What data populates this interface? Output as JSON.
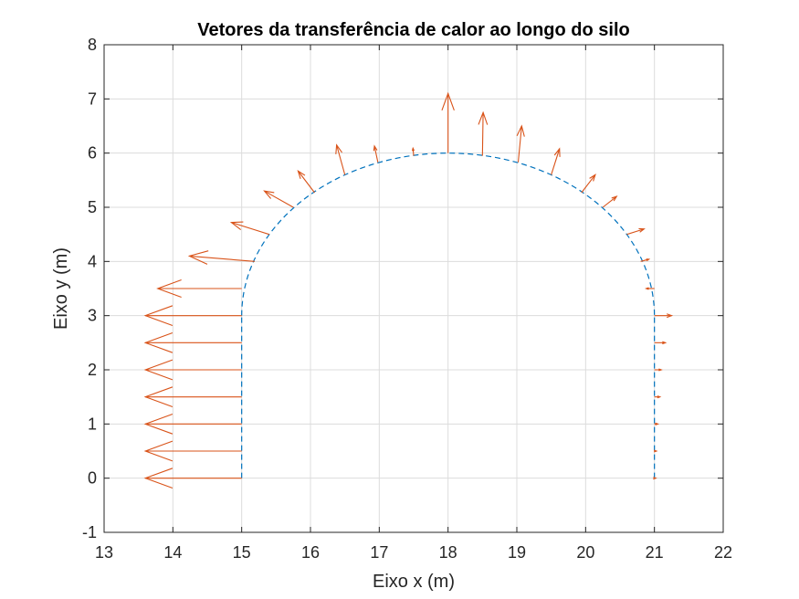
{
  "chart_data": {
    "type": "quiver",
    "title": "Vetores da transferência de calor ao longo do silo",
    "xlabel": "Eixo x (m)",
    "ylabel": "Eixo y (m)",
    "xlim": [
      13,
      22
    ],
    "ylim": [
      -1,
      8
    ],
    "xticks": [
      "13",
      "14",
      "15",
      "16",
      "17",
      "18",
      "19",
      "20",
      "21",
      "22"
    ],
    "yticks": [
      "-1",
      "0",
      "1",
      "2",
      "3",
      "4",
      "5",
      "6",
      "7",
      "8"
    ],
    "grid": true,
    "colors": {
      "silo_outline": "#0072BD",
      "vectors": "#D95319",
      "grid": "#dcdcdc",
      "axes": "#262626"
    },
    "silo_outline": {
      "style": "dashed",
      "left_wall": {
        "x": 15,
        "y_from": 0,
        "y_to": 3
      },
      "right_wall": {
        "x": 21,
        "y_from": 0,
        "y_to": 3
      },
      "dome": {
        "center": [
          18,
          3
        ],
        "radius": 3
      }
    },
    "vectors": [
      {
        "x": 15,
        "y": 0,
        "u": -1.4,
        "v": 0
      },
      {
        "x": 15,
        "y": 0.5,
        "u": -1.4,
        "v": 0
      },
      {
        "x": 15,
        "y": 1,
        "u": -1.4,
        "v": 0
      },
      {
        "x": 15,
        "y": 1.5,
        "u": -1.4,
        "v": 0
      },
      {
        "x": 15,
        "y": 2,
        "u": -1.4,
        "v": 0
      },
      {
        "x": 15,
        "y": 2.5,
        "u": -1.4,
        "v": 0
      },
      {
        "x": 15,
        "y": 3,
        "u": -1.4,
        "v": 0
      },
      {
        "x": 15,
        "y": 3.5,
        "u": -1.22,
        "v": 0
      },
      {
        "x": 15.19,
        "y": 4.0,
        "u": -0.95,
        "v": 0.1
      },
      {
        "x": 15.4,
        "y": 4.5,
        "u": -0.55,
        "v": 0.22
      },
      {
        "x": 15.75,
        "y": 5.0,
        "u": -0.42,
        "v": 0.3
      },
      {
        "x": 16.06,
        "y": 5.27,
        "u": -0.24,
        "v": 0.4
      },
      {
        "x": 16.5,
        "y": 5.6,
        "u": -0.12,
        "v": 0.55
      },
      {
        "x": 16.98,
        "y": 5.83,
        "u": -0.05,
        "v": 0.3
      },
      {
        "x": 17.5,
        "y": 5.95,
        "u": -0.01,
        "v": 0.14
      },
      {
        "x": 18.0,
        "y": 6.0,
        "u": 0,
        "v": 1.1
      },
      {
        "x": 18.5,
        "y": 5.95,
        "u": 0.01,
        "v": 0.8
      },
      {
        "x": 19.02,
        "y": 5.83,
        "u": 0.05,
        "v": 0.67
      },
      {
        "x": 19.5,
        "y": 5.6,
        "u": 0.12,
        "v": 0.48
      },
      {
        "x": 19.94,
        "y": 5.27,
        "u": 0.2,
        "v": 0.33
      },
      {
        "x": 20.25,
        "y": 5.0,
        "u": 0.2,
        "v": 0.2
      },
      {
        "x": 20.6,
        "y": 4.5,
        "u": 0.25,
        "v": 0.1
      },
      {
        "x": 20.8,
        "y": 4.0,
        "u": 0.12,
        "v": 0.04
      },
      {
        "x": 21,
        "y": 3.5,
        "u": -0.12,
        "v": 0
      },
      {
        "x": 21,
        "y": 3,
        "u": 0.25,
        "v": 0
      },
      {
        "x": 21,
        "y": 2.5,
        "u": 0.16,
        "v": 0
      },
      {
        "x": 21,
        "y": 2,
        "u": 0.1,
        "v": 0
      },
      {
        "x": 21,
        "y": 1.5,
        "u": 0.08,
        "v": 0
      },
      {
        "x": 21,
        "y": 1,
        "u": 0.05,
        "v": 0
      },
      {
        "x": 21,
        "y": 0.5,
        "u": 0.03,
        "v": 0
      },
      {
        "x": 21,
        "y": 0,
        "u": 0.02,
        "v": 0
      }
    ]
  }
}
